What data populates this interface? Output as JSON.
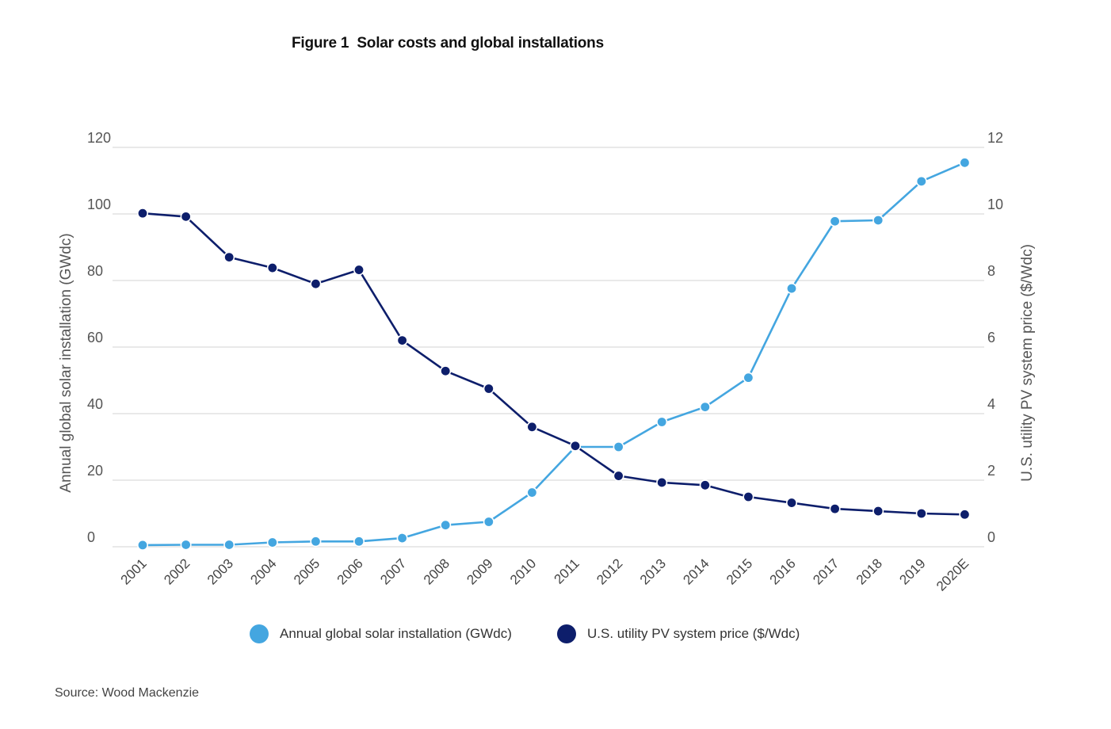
{
  "figure": {
    "label": "Figure 1",
    "title": "Solar costs and global installations"
  },
  "source": "Source: Wood Mackenzie",
  "chart_data": {
    "type": "line",
    "categories": [
      "2001",
      "2002",
      "2003",
      "2004",
      "2005",
      "2006",
      "2007",
      "2008",
      "2009",
      "2010",
      "2011",
      "2012",
      "2013",
      "2014",
      "2015",
      "2016",
      "2017",
      "2018",
      "2019",
      "2020E"
    ],
    "left_axis": {
      "label": "Annual global solar installation (GWdc)",
      "ylim": [
        0,
        120
      ],
      "ticks": [
        0,
        20,
        40,
        60,
        80,
        100,
        120
      ]
    },
    "right_axis": {
      "label": "U.S. utility PV system price ($/Wdc)",
      "ylim": [
        0,
        12
      ],
      "ticks": [
        0,
        2,
        4,
        6,
        8,
        10,
        12
      ]
    },
    "grid": true,
    "legend_position": "bottom",
    "series": [
      {
        "name": "Annual global solar installation (GWdc)",
        "axis": "left",
        "color": "#44a6e0",
        "values": [
          0.5,
          0.6,
          0.6,
          1.3,
          1.6,
          1.6,
          2.6,
          6.5,
          7.5,
          16.3,
          30.0,
          30.0,
          37.5,
          42.0,
          50.8,
          77.6,
          97.8,
          98.1,
          109.8,
          115.4
        ]
      },
      {
        "name": "U.S. utility PV system price ($/Wdc)",
        "axis": "right",
        "color": "#0d1e6b",
        "values": [
          10.02,
          9.92,
          8.7,
          8.38,
          7.9,
          8.32,
          6.2,
          5.28,
          4.75,
          3.6,
          3.03,
          2.13,
          1.93,
          1.85,
          1.5,
          1.32,
          1.14,
          1.07,
          1.0,
          0.97
        ]
      }
    ]
  }
}
